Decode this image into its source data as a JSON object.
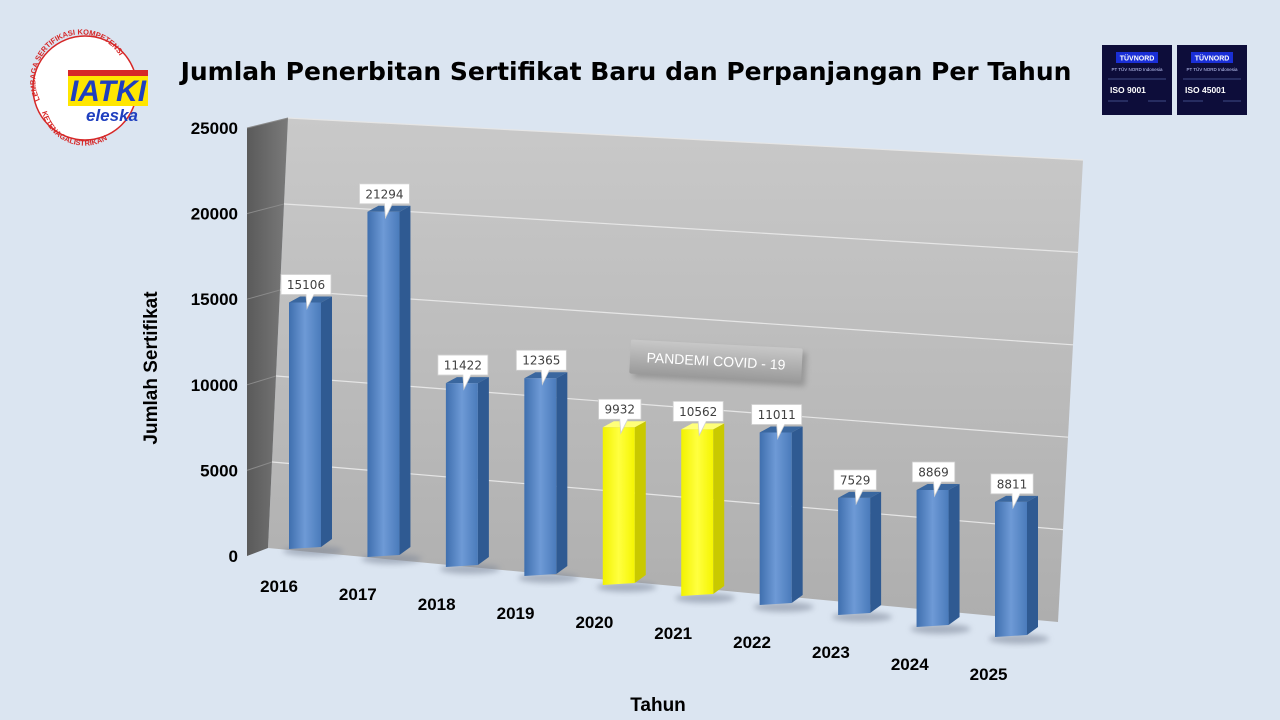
{
  "logo": {
    "main_text": "IATKI",
    "sub_text": "eleska",
    "ring_top": "LEMBAGA SERTIFIKASI KOMPETENSI",
    "ring_bottom": "KETENAGALISTRIKAN"
  },
  "badges": [
    {
      "brand": "TÜVNORD",
      "company": "PT TÜV NORD Indonesia",
      "iso": "ISO 9001"
    },
    {
      "brand": "TÜVNORD",
      "company": "PT TÜV NORD Indonesia",
      "iso": "ISO 45001"
    }
  ],
  "colors": {
    "background": "#dbe5f1",
    "bar_default": "#4f81bd",
    "bar_highlight": "#ffff00",
    "plot_wall": "#bfbfbf"
  },
  "chart_data": {
    "type": "bar",
    "style": "3d-column",
    "title": "Jumlah Penerbitan Sertifikat Baru dan Perpanjangan Per Tahun",
    "xlabel": "Tahun",
    "ylabel": "Jumlah Sertifikat",
    "ylim": [
      0,
      25000
    ],
    "yticks": [
      0,
      5000,
      10000,
      15000,
      20000,
      25000
    ],
    "grid": true,
    "categories": [
      "2016",
      "2017",
      "2018",
      "2019",
      "2020",
      "2021",
      "2022",
      "2023",
      "2024",
      "2025"
    ],
    "values": [
      15106,
      21294,
      11422,
      12365,
      9932,
      10562,
      11011,
      7529,
      8869,
      8811
    ],
    "highlighted_categories": [
      "2020",
      "2021"
    ],
    "annotation": "PANDEMI COVID - 19"
  }
}
